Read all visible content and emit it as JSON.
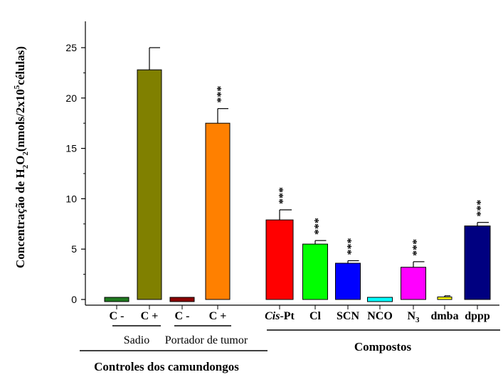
{
  "chart_data": {
    "type": "bar",
    "ylabel": {
      "main": "Concentração de H",
      "sub1": "2",
      "mid": "O",
      "sub2": "2",
      "paren_open": "(nmols/2x10",
      "sup": "5",
      "paren_close": "células)"
    },
    "ylim": [
      0,
      27
    ],
    "yticks": [
      0,
      5,
      10,
      15,
      20,
      25
    ],
    "grid": false,
    "bars": [
      {
        "label": "C -",
        "value": 0.0,
        "error": 0.0,
        "color": "#1f7a1f",
        "sig": ""
      },
      {
        "label": "C +",
        "value": 22.8,
        "error": 2.2,
        "color": "#808000",
        "sig": ""
      },
      {
        "label": "C -",
        "value": 0.0,
        "error": 0.0,
        "color": "#8b0000",
        "sig": ""
      },
      {
        "label": "C +",
        "value": 17.5,
        "error": 1.45,
        "color": "#ff8000",
        "sig": "***"
      },
      {
        "label_italic": "Cis",
        "label_rest": "-Pt",
        "value": 7.9,
        "error": 1.0,
        "color": "#ff0000",
        "sig": "***"
      },
      {
        "label": "Cl",
        "value": 5.5,
        "error": 0.35,
        "color": "#00ff00",
        "sig": "***"
      },
      {
        "label": "SCN",
        "value": 3.6,
        "error": 0.25,
        "color": "#0000ff",
        "sig": "***"
      },
      {
        "label": "NCO",
        "value": 0.0,
        "error": 0.0,
        "color": "#00ffff",
        "sig": ""
      },
      {
        "label": "N",
        "label_sub": "3",
        "value": 3.2,
        "error": 0.55,
        "color": "#ff00ff",
        "sig": "***"
      },
      {
        "label": "dmba",
        "value": 0.25,
        "error": 0.12,
        "color": "#ffff00",
        "sig": ""
      },
      {
        "label": "dppp",
        "value": 7.3,
        "error": 0.35,
        "color": "#000080",
        "sig": "***"
      }
    ],
    "groups": {
      "sadio": "Sadio",
      "portador": "Portador de tumor",
      "controles": "Controles dos camundongos",
      "compostos": "Compostos"
    }
  }
}
